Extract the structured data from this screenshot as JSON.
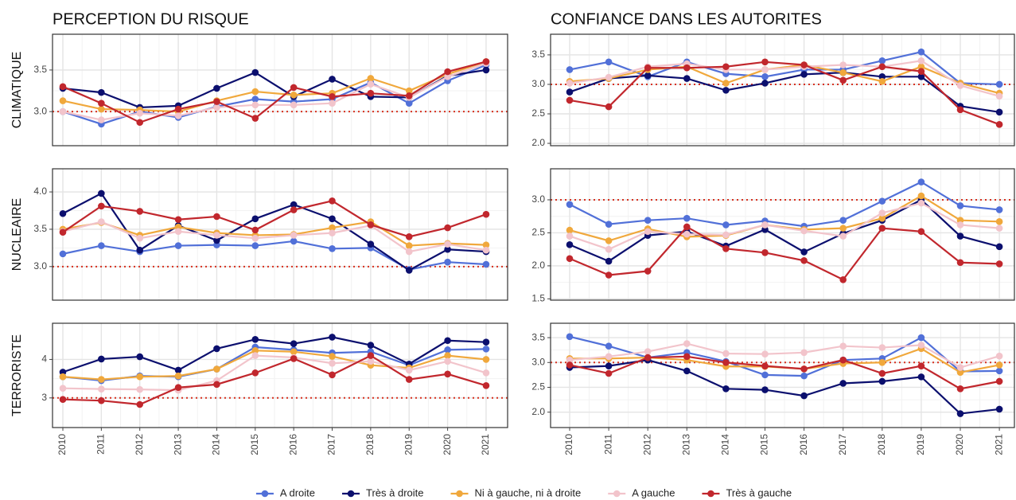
{
  "chart_data": {
    "type": "line",
    "grid": true,
    "legend": "bottom",
    "hline": 3,
    "hline_color": "#d7301f",
    "categories": [
      "2010",
      "2011",
      "2012",
      "2013",
      "2014",
      "2015",
      "2016",
      "2017",
      "2018",
      "2019",
      "2020",
      "2021"
    ],
    "column_titles": [
      "PERCEPTION DU RISQUE",
      "CONFIANCE DANS LES AUTORITES"
    ],
    "row_labels": [
      "CLIMATIQUE",
      "NUCLEAIRE",
      "TERRORISTE"
    ],
    "series": [
      {
        "name": "A droite",
        "color": "#5170d8"
      },
      {
        "name": "Très à droite",
        "color": "#0b0f6e"
      },
      {
        "name": "Ni à gauche, ni à droite",
        "color": "#f0a83c"
      },
      {
        "name": "A gauche",
        "color": "#f2c4cb"
      },
      {
        "name": "Très à gauche",
        "color": "#c1272d"
      }
    ],
    "panels": [
      {
        "ylim": [
          2.59,
          3.93
        ],
        "yticks": [
          {
            "value": 3,
            "label": "3.0"
          },
          3.5
        ],
        "values": [
          [
            3.0,
            2.85,
            3.0,
            2.93,
            3.06,
            3.15,
            3.12,
            3.15,
            3.35,
            3.1,
            3.37,
            3.56
          ],
          [
            3.28,
            3.23,
            3.05,
            3.07,
            3.28,
            3.47,
            3.18,
            3.39,
            3.18,
            3.17,
            3.43,
            3.5
          ],
          [
            3.13,
            3.03,
            3.02,
            3.0,
            3.13,
            3.24,
            3.2,
            3.22,
            3.4,
            3.25,
            3.45,
            3.6
          ],
          [
            3.0,
            2.9,
            2.98,
            2.95,
            3.05,
            3.08,
            3.08,
            3.1,
            3.33,
            3.17,
            3.42,
            3.58
          ],
          [
            3.3,
            3.1,
            2.87,
            3.03,
            3.12,
            2.92,
            3.29,
            3.18,
            3.22,
            3.19,
            3.48,
            3.6
          ]
        ]
      },
      {
        "ylim": [
          1.96,
          3.85
        ],
        "yticks": [
          {
            "value": 2,
            "label": "2.0"
          },
          2.5,
          {
            "value": 3,
            "label": "3.0"
          },
          3.5
        ],
        "values": [
          [
            3.25,
            3.38,
            3.13,
            3.38,
            3.18,
            3.13,
            3.25,
            3.25,
            3.4,
            3.55,
            3.02,
            3.0
          ],
          [
            2.87,
            3.1,
            3.15,
            3.1,
            2.9,
            3.02,
            3.17,
            3.2,
            3.13,
            3.13,
            2.63,
            2.53
          ],
          [
            3.05,
            3.1,
            3.25,
            3.3,
            3.02,
            3.25,
            3.33,
            3.2,
            3.05,
            3.3,
            3.02,
            2.85
          ],
          [
            3.02,
            3.12,
            3.3,
            3.35,
            3.25,
            3.25,
            3.3,
            3.33,
            3.3,
            3.4,
            2.98,
            2.8
          ],
          [
            2.73,
            2.62,
            3.28,
            3.28,
            3.3,
            3.38,
            3.33,
            3.07,
            3.3,
            3.22,
            2.57,
            2.32
          ]
        ]
      },
      {
        "ylim": [
          2.55,
          4.31
        ],
        "yticks": [
          {
            "value": 3,
            "label": "3.0"
          },
          3.5,
          {
            "value": 4,
            "label": "4.0"
          }
        ],
        "values": [
          [
            3.17,
            3.28,
            3.2,
            3.28,
            3.29,
            3.28,
            3.34,
            3.24,
            3.25,
            2.96,
            3.06,
            3.03
          ],
          [
            3.71,
            3.98,
            3.22,
            3.55,
            3.35,
            3.64,
            3.83,
            3.64,
            3.3,
            2.95,
            3.23,
            3.2
          ],
          [
            3.5,
            3.59,
            3.42,
            3.53,
            3.45,
            3.42,
            3.43,
            3.52,
            3.6,
            3.28,
            3.31,
            3.29
          ],
          [
            3.47,
            3.6,
            3.38,
            3.47,
            3.42,
            3.38,
            3.42,
            3.45,
            3.55,
            3.2,
            3.3,
            3.22
          ],
          [
            3.46,
            3.81,
            3.74,
            3.63,
            3.67,
            3.49,
            3.76,
            3.88,
            3.56,
            3.4,
            3.52,
            3.7
          ]
        ]
      },
      {
        "ylim": [
          1.48,
          3.47
        ],
        "yticks": [
          1.5,
          {
            "value": 2,
            "label": "2.0"
          },
          2.5,
          {
            "value": 3,
            "label": "3.0"
          }
        ],
        "values": [
          [
            2.93,
            2.63,
            2.69,
            2.72,
            2.62,
            2.68,
            2.6,
            2.69,
            2.98,
            3.27,
            2.91,
            2.85
          ],
          [
            2.32,
            2.07,
            2.46,
            2.52,
            2.3,
            2.55,
            2.21,
            2.49,
            2.69,
            3.0,
            2.45,
            2.29
          ],
          [
            2.54,
            2.38,
            2.56,
            2.44,
            2.46,
            2.62,
            2.55,
            2.57,
            2.72,
            3.06,
            2.69,
            2.67
          ],
          [
            2.45,
            2.25,
            2.52,
            2.48,
            2.47,
            2.62,
            2.53,
            2.45,
            2.8,
            2.95,
            2.62,
            2.57
          ],
          [
            2.11,
            1.86,
            1.92,
            2.59,
            2.26,
            2.2,
            2.08,
            1.79,
            2.57,
            2.52,
            2.05,
            2.03
          ]
        ]
      },
      {
        "ylim": [
          2.23,
          4.94
        ],
        "yticks": [
          3,
          4
        ],
        "values": [
          [
            3.55,
            3.45,
            3.57,
            3.55,
            3.75,
            4.32,
            4.25,
            4.17,
            4.2,
            3.85,
            4.25,
            4.27
          ],
          [
            3.67,
            4.01,
            4.07,
            3.72,
            4.28,
            4.52,
            4.41,
            4.58,
            4.37,
            3.88,
            4.49,
            4.45
          ],
          [
            3.55,
            3.48,
            3.55,
            3.57,
            3.75,
            4.23,
            4.2,
            4.08,
            3.85,
            3.78,
            4.1,
            4.0
          ],
          [
            3.25,
            3.23,
            3.22,
            3.2,
            3.45,
            4.1,
            4.05,
            3.9,
            3.95,
            3.72,
            3.95,
            3.65
          ],
          [
            2.96,
            2.93,
            2.83,
            3.27,
            3.35,
            3.65,
            4.02,
            3.6,
            4.1,
            3.48,
            3.62,
            3.32
          ]
        ]
      },
      {
        "ylim": [
          1.69,
          3.79
        ],
        "yticks": [
          {
            "value": 2,
            "label": "2.0"
          },
          2.5,
          {
            "value": 3,
            "label": "3.0"
          },
          3.5
        ],
        "values": [
          [
            3.52,
            3.33,
            3.1,
            3.2,
            3.02,
            2.75,
            2.73,
            3.05,
            3.08,
            3.5,
            2.82,
            2.83
          ],
          [
            2.9,
            2.93,
            3.05,
            2.83,
            2.47,
            2.45,
            2.33,
            2.58,
            2.62,
            2.71,
            1.97,
            2.06
          ],
          [
            3.08,
            3.08,
            3.1,
            3.05,
            2.92,
            2.92,
            2.87,
            2.98,
            3.0,
            3.28,
            2.8,
            2.95
          ],
          [
            3.05,
            3.12,
            3.22,
            3.38,
            3.18,
            3.17,
            3.2,
            3.33,
            3.3,
            3.35,
            2.9,
            3.13
          ],
          [
            2.95,
            2.78,
            3.1,
            3.12,
            3.0,
            2.93,
            2.87,
            3.05,
            2.78,
            2.93,
            2.47,
            2.62
          ]
        ]
      }
    ]
  }
}
